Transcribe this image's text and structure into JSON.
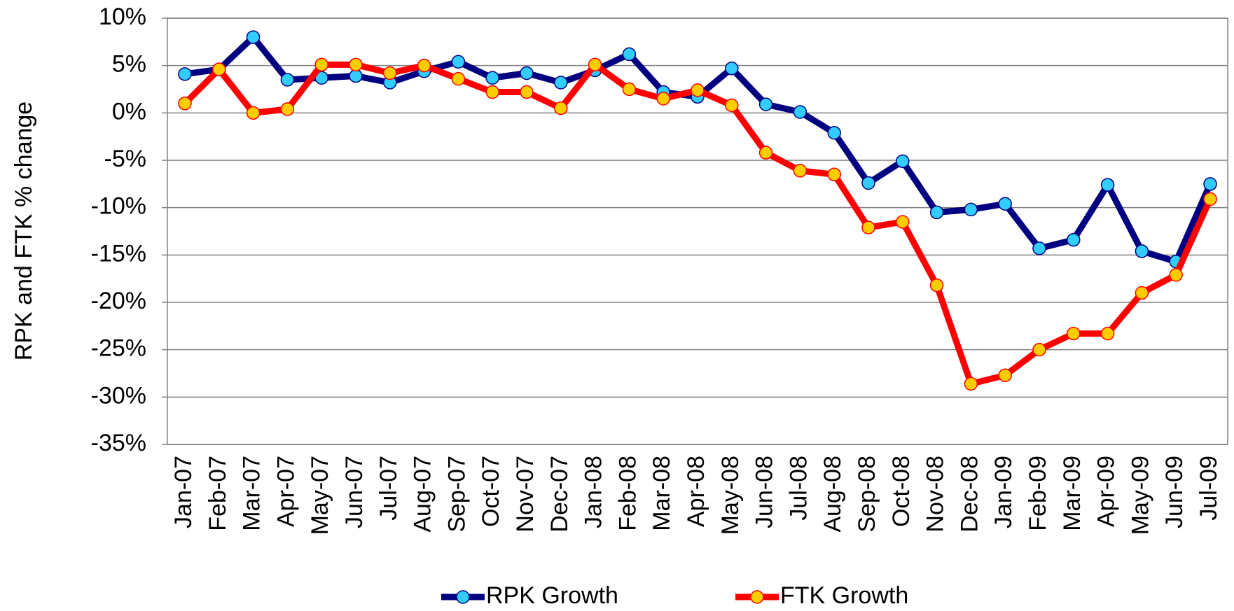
{
  "chart_data": {
    "type": "line",
    "ylabel": "RPK and FTK % change",
    "categories": [
      "Jan-07",
      "Feb-07",
      "Mar-07",
      "Apr-07",
      "May-07",
      "Jun-07",
      "Jul-07",
      "Aug-07",
      "Sep-07",
      "Oct-07",
      "Nov-07",
      "Dec-07",
      "Jan-08",
      "Feb-08",
      "Mar-08",
      "Apr-08",
      "May-08",
      "Jun-08",
      "Jul-08",
      "Aug-08",
      "Sep-08",
      "Oct-08",
      "Nov-08",
      "Dec-08",
      "Jan-09",
      "Feb-09",
      "Mar-09",
      "Apr-09",
      "May-09",
      "Jun-09",
      "Jul-09"
    ],
    "series": [
      {
        "name": "RPK Growth",
        "color": "#000080",
        "marker_color": "#33ccff",
        "values": [
          4.1,
          4.6,
          8.0,
          3.5,
          3.7,
          3.9,
          3.2,
          4.4,
          5.4,
          3.7,
          4.2,
          3.2,
          4.5,
          6.2,
          2.2,
          1.7,
          4.7,
          0.9,
          0.1,
          -2.1,
          -7.4,
          -5.1,
          -10.5,
          -10.2,
          -9.6,
          -14.3,
          -13.4,
          -7.6,
          -14.6,
          -15.7,
          -7.5
        ]
      },
      {
        "name": "FTK Growth",
        "color": "#ff0000",
        "marker_color": "#ffcc00",
        "values": [
          1.0,
          4.6,
          0.0,
          0.4,
          5.1,
          5.1,
          4.2,
          5.0,
          3.6,
          2.2,
          2.2,
          0.5,
          5.1,
          2.5,
          1.5,
          2.4,
          0.8,
          -4.2,
          -6.1,
          -6.5,
          -12.1,
          -11.5,
          -18.2,
          -28.6,
          -27.7,
          -25.0,
          -23.3,
          -23.3,
          -19.0,
          -17.1,
          -9.1
        ]
      }
    ],
    "ylim": [
      -35,
      10
    ],
    "yticks": [
      {
        "value": -35,
        "label": "-35%"
      },
      {
        "value": -30,
        "label": "-30%"
      },
      {
        "value": -25,
        "label": "-25%"
      },
      {
        "value": -20,
        "label": "-20%"
      },
      {
        "value": -15,
        "label": "-15%"
      },
      {
        "value": -10,
        "label": "-10%"
      },
      {
        "value": -5,
        "label": "-5%"
      },
      {
        "value": 0,
        "label": "0%"
      },
      {
        "value": 5,
        "label": "5%"
      },
      {
        "value": 10,
        "label": "10%"
      }
    ],
    "grid": true,
    "legend": "bottom"
  }
}
